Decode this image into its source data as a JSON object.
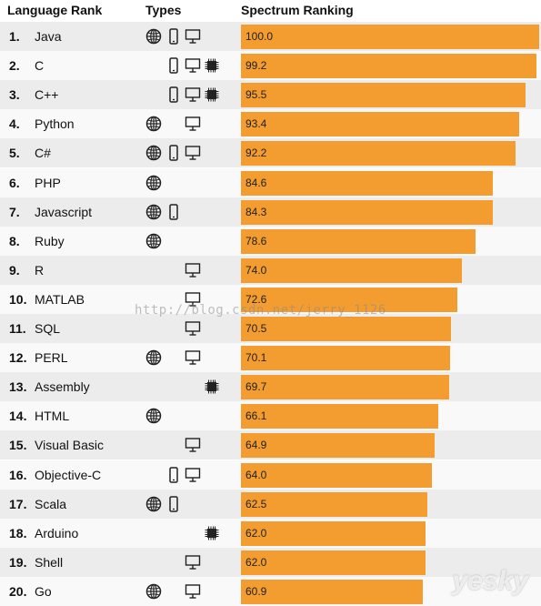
{
  "header": {
    "rank_label": "Language Rank",
    "types_label": "Types",
    "ranking_label": "Spectrum Ranking"
  },
  "chart_data": {
    "type": "bar",
    "orientation": "horizontal",
    "title": "",
    "xlim": [
      0,
      100
    ],
    "bar_color": "#f39c2f",
    "categories": [
      "Java",
      "C",
      "C++",
      "Python",
      "C#",
      "PHP",
      "Javascript",
      "Ruby",
      "R",
      "MATLAB",
      "SQL",
      "PERL",
      "Assembly",
      "HTML",
      "Visual Basic",
      "Objective-C",
      "Scala",
      "Arduino",
      "Shell",
      "Go"
    ],
    "ranks": [
      "1.",
      "2.",
      "3.",
      "4.",
      "5.",
      "6.",
      "7.",
      "8.",
      "9.",
      "10.",
      "11.",
      "12.",
      "13.",
      "14.",
      "15.",
      "16.",
      "17.",
      "18.",
      "19.",
      "20."
    ],
    "values": [
      100.0,
      99.2,
      95.5,
      93.4,
      92.2,
      84.6,
      84.3,
      78.6,
      74.0,
      72.6,
      70.5,
      70.1,
      69.7,
      66.1,
      64.9,
      64.0,
      62.5,
      62.0,
      62.0,
      60.9
    ],
    "value_labels": [
      "100.0",
      "99.2",
      "95.5",
      "93.4",
      "92.2",
      "84.6",
      "84.3",
      "78.6",
      "74.0",
      "72.6",
      "70.5",
      "70.1",
      "69.7",
      "66.1",
      "64.9",
      "64.0",
      "62.5",
      "62.0",
      "62.0",
      "60.9"
    ],
    "types": [
      [
        "web",
        "mobile",
        "desktop"
      ],
      [
        "mobile",
        "desktop",
        "embedded"
      ],
      [
        "mobile",
        "desktop",
        "embedded"
      ],
      [
        "web",
        "desktop"
      ],
      [
        "web",
        "mobile",
        "desktop"
      ],
      [
        "web"
      ],
      [
        "web",
        "mobile"
      ],
      [
        "web"
      ],
      [
        "desktop"
      ],
      [
        "desktop"
      ],
      [
        "desktop"
      ],
      [
        "web",
        "desktop"
      ],
      [
        "embedded"
      ],
      [
        "web"
      ],
      [
        "desktop"
      ],
      [
        "mobile",
        "desktop"
      ],
      [
        "web",
        "mobile"
      ],
      [
        "embedded"
      ],
      [
        "desktop"
      ],
      [
        "web",
        "desktop"
      ]
    ],
    "type_icons": {
      "web": "globe-icon",
      "mobile": "phone-icon",
      "desktop": "monitor-icon",
      "embedded": "chip-icon"
    }
  },
  "watermarks": {
    "url": "http://blog.csdn.net/jerry_1126",
    "brand": "yesky"
  }
}
